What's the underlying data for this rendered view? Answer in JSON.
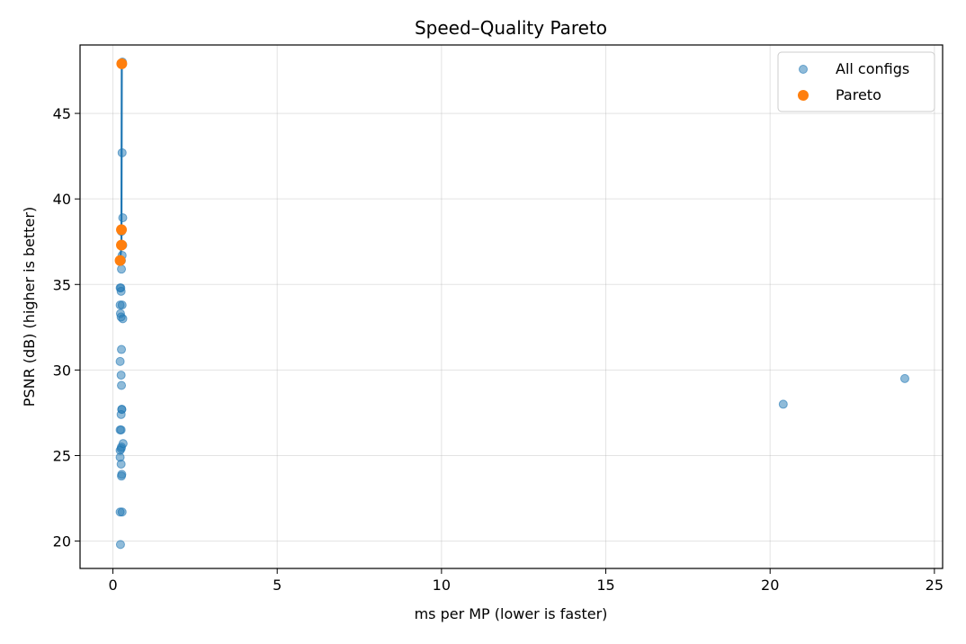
{
  "chart_data": {
    "type": "scatter",
    "title": "Speed–Quality Pareto",
    "xlabel": "ms per MP (lower is faster)",
    "ylabel": "PSNR (dB) (higher is better)",
    "xlim": [
      -1.0,
      25.25
    ],
    "ylim": [
      18.4,
      49.0
    ],
    "x_ticks": [
      0,
      5,
      10,
      15,
      20,
      25
    ],
    "y_ticks": [
      20,
      25,
      30,
      35,
      40,
      45
    ],
    "grid": true,
    "legend_position": "top-right",
    "colors": {
      "all": "#1f77b4",
      "pareto": "#ff7f0e",
      "line": "#1f77b4"
    },
    "series": [
      {
        "name": "All configs",
        "x": [
          0.28,
          0.3,
          0.28,
          0.26,
          0.24,
          0.22,
          0.25,
          0.28,
          0.22,
          0.23,
          0.25,
          0.3,
          0.26,
          0.22,
          0.25,
          0.26,
          0.27,
          0.27,
          0.25,
          0.22,
          0.25,
          0.31,
          0.26,
          0.22,
          0.25,
          0.22,
          0.25,
          0.27,
          0.26,
          0.28,
          0.22,
          0.23,
          0.29,
          0.26,
          0.27,
          0.26,
          0.28,
          0.3,
          20.4,
          24.1
        ],
        "y": [
          42.7,
          38.9,
          36.7,
          35.9,
          34.8,
          34.8,
          34.6,
          33.8,
          33.8,
          33.3,
          33.1,
          33.0,
          31.2,
          30.5,
          29.7,
          29.1,
          27.7,
          27.7,
          27.4,
          26.5,
          26.5,
          25.7,
          25.5,
          25.3,
          25.4,
          24.9,
          24.5,
          23.9,
          23.8,
          21.7,
          21.7,
          19.8,
          48.0,
          38.1,
          37.3,
          36.4,
          38.2,
          37.3,
          28.0,
          29.5
        ]
      },
      {
        "name": "Pareto",
        "x": [
          0.27,
          0.26,
          0.26,
          0.22
        ],
        "y": [
          47.9,
          38.2,
          37.3,
          36.4
        ]
      }
    ],
    "pareto_line": {
      "x": [
        0.22,
        0.26,
        0.26,
        0.27
      ],
      "y": [
        36.4,
        37.3,
        38.2,
        47.9
      ]
    }
  }
}
